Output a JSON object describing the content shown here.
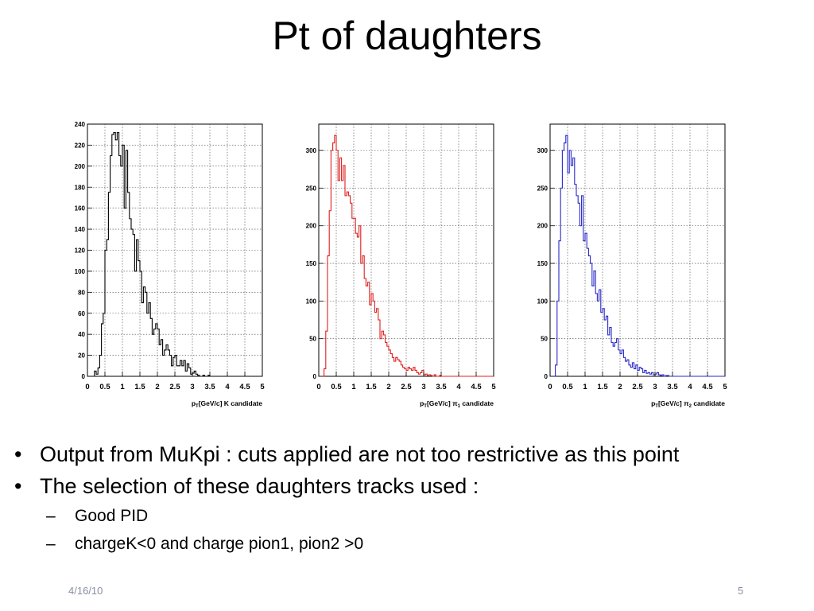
{
  "slide": {
    "title": "Pt of daughters",
    "bullets": [
      "Output from MuKpi : cuts applied are not too restrictive as this point",
      "The selection of these daughters tracks used :"
    ],
    "sub_bullets": [
      "Good PID",
      "chargeK<0 and charge pion1, pion2 >0"
    ],
    "bullet_char": "•",
    "dash_char": "–",
    "footer_date": "4/16/10",
    "page_number": "5"
  },
  "chart_data": [
    {
      "type": "histogram",
      "xlabel": "p_T [GeV/c] K candidate",
      "xlabel_parts": {
        "main": "p",
        "sub": "T",
        "unit": "[GeV/c] K candidate"
      },
      "xlim": [
        0,
        5
      ],
      "ylim": [
        0,
        240
      ],
      "x_ticks": [
        "0",
        "0.5",
        "1",
        "1.5",
        "2",
        "2.5",
        "3",
        "3.5",
        "4",
        "4.5",
        "5"
      ],
      "y_ticks": [
        "0",
        "20",
        "40",
        "60",
        "80",
        "100",
        "120",
        "140",
        "160",
        "180",
        "200",
        "220",
        "240"
      ],
      "y_tick_values": [
        0,
        20,
        40,
        60,
        80,
        100,
        120,
        140,
        160,
        180,
        200,
        220,
        240
      ],
      "grid": true,
      "color": "#000000",
      "bin_width": 0.05,
      "values": [
        0,
        0,
        0,
        0,
        5,
        2,
        8,
        20,
        50,
        60,
        120,
        130,
        175,
        210,
        230,
        232,
        225,
        232,
        210,
        200,
        220,
        160,
        215,
        175,
        150,
        140,
        135,
        100,
        130,
        110,
        100,
        70,
        85,
        80,
        60,
        70,
        55,
        40,
        45,
        50,
        45,
        30,
        35,
        20,
        25,
        30,
        25,
        20,
        10,
        18,
        20,
        10,
        10,
        15,
        10,
        15,
        5,
        12,
        8,
        2,
        3,
        5,
        2,
        1,
        0,
        0,
        1,
        0,
        0,
        1,
        0,
        0,
        0,
        0,
        0,
        0,
        0,
        0,
        0,
        0,
        0,
        0,
        0,
        0,
        0,
        0,
        0,
        0,
        0,
        0,
        0,
        0,
        0,
        0,
        0,
        0,
        0,
        0,
        0,
        0
      ]
    },
    {
      "type": "histogram",
      "xlabel": "p_T [GeV/c] π_1 candidate",
      "xlabel_parts": {
        "main": "p",
        "sub": "T",
        "unit": "[GeV/c] π",
        "unit_sub": "1",
        "tail": " candidate"
      },
      "xlim": [
        0,
        5
      ],
      "ylim": [
        0,
        335
      ],
      "x_ticks": [
        "0",
        "0.5",
        "1",
        "1.5",
        "2",
        "2.5",
        "3",
        "3.5",
        "4",
        "4.5",
        "5"
      ],
      "y_ticks": [
        "0",
        "50",
        "100",
        "150",
        "200",
        "250",
        "300"
      ],
      "y_tick_values": [
        0,
        50,
        100,
        150,
        200,
        250,
        300
      ],
      "grid": true,
      "color": "#e02020",
      "bin_width": 0.05,
      "values": [
        0,
        0,
        0,
        10,
        60,
        160,
        220,
        300,
        310,
        320,
        300,
        260,
        290,
        260,
        280,
        240,
        245,
        240,
        230,
        210,
        210,
        190,
        185,
        200,
        150,
        160,
        130,
        120,
        125,
        95,
        110,
        100,
        85,
        90,
        75,
        50,
        60,
        55,
        45,
        40,
        35,
        30,
        25,
        20,
        25,
        22,
        20,
        15,
        12,
        10,
        8,
        12,
        10,
        8,
        12,
        8,
        5,
        3,
        5,
        8,
        2,
        3,
        1,
        2,
        1,
        0,
        2,
        0,
        0,
        1,
        0,
        0,
        0,
        0,
        0,
        0,
        0,
        0,
        0,
        0,
        0,
        0,
        0,
        0,
        0,
        0,
        0,
        0,
        0,
        0,
        0,
        0,
        0,
        0,
        0,
        0,
        0,
        0,
        0,
        0
      ]
    },
    {
      "type": "histogram",
      "xlabel": "p_T [GeV/c] π_2 candidate",
      "xlabel_parts": {
        "main": "p",
        "sub": "T",
        "unit": "[GeV/c] π",
        "unit_sub": "2",
        "tail": " candidate"
      },
      "xlim": [
        0,
        5
      ],
      "ylim": [
        0,
        335
      ],
      "x_ticks": [
        "0",
        "0.5",
        "1",
        "1.5",
        "2",
        "2.5",
        "3",
        "3.5",
        "4",
        "4.5",
        "5"
      ],
      "y_ticks": [
        "0",
        "50",
        "100",
        "150",
        "200",
        "250",
        "300"
      ],
      "y_tick_values": [
        0,
        50,
        100,
        150,
        200,
        250,
        300
      ],
      "grid": true,
      "color": "#2828c8",
      "bin_width": 0.05,
      "values": [
        0,
        0,
        0,
        15,
        100,
        180,
        250,
        300,
        310,
        320,
        270,
        300,
        280,
        290,
        255,
        240,
        230,
        200,
        240,
        180,
        190,
        170,
        160,
        150,
        120,
        140,
        110,
        100,
        115,
        85,
        90,
        75,
        80,
        55,
        65,
        45,
        40,
        45,
        50,
        35,
        30,
        35,
        25,
        20,
        22,
        15,
        12,
        18,
        10,
        15,
        8,
        12,
        10,
        5,
        8,
        4,
        5,
        3,
        5,
        2,
        3,
        5,
        2,
        1,
        2,
        0,
        1,
        1,
        0,
        0,
        0,
        0,
        0,
        0,
        0,
        0,
        0,
        0,
        0,
        0,
        0,
        0,
        0,
        0,
        0,
        0,
        0,
        0,
        0,
        0,
        0,
        0,
        0,
        0,
        0,
        0,
        0,
        0,
        0,
        0
      ]
    }
  ]
}
